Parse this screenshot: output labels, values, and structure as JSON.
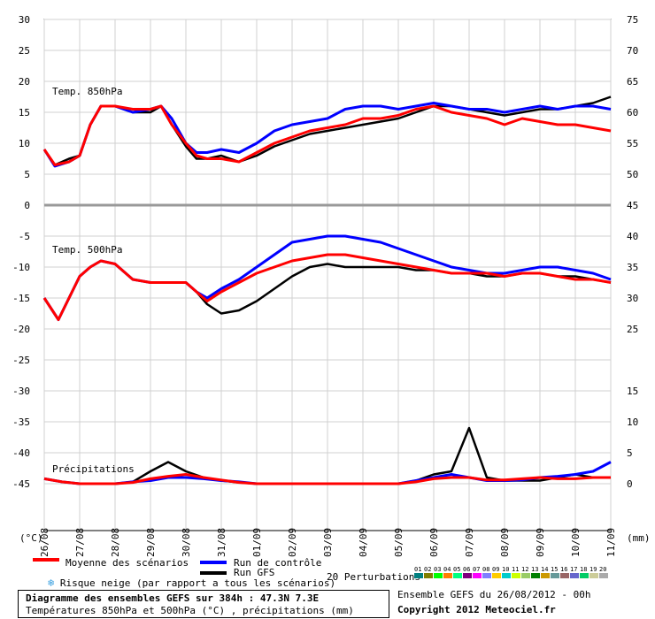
{
  "chart_data": [
    {
      "type": "line",
      "panel": "temp850",
      "title": "Temp. 850hPa",
      "ylim": [
        0,
        30
      ],
      "y_ticks": [
        0,
        5,
        10,
        15,
        20,
        25,
        30
      ],
      "x_dates": [
        "26/08",
        "27/08",
        "28/08",
        "29/08",
        "30/08",
        "31/08",
        "01/09",
        "02/09",
        "03/09",
        "04/09",
        "05/09",
        "06/09",
        "07/09",
        "08/09",
        "09/09",
        "10/09",
        "11/09"
      ],
      "series": [
        {
          "name": "Moyenne des scénarios",
          "x": [
            0,
            0.3,
            0.7,
            1,
            1.3,
            1.6,
            2,
            2.5,
            3,
            3.3,
            3.6,
            4,
            4.3,
            4.6,
            5,
            5.5,
            6,
            6.5,
            7,
            7.5,
            8,
            8.5,
            9,
            9.5,
            10,
            10.5,
            11,
            11.5,
            12,
            12.5,
            13,
            13.5,
            14,
            14.5,
            15,
            15.5,
            16
          ],
          "values": [
            9,
            6.5,
            7,
            8,
            13,
            16,
            16,
            15.5,
            15.5,
            16,
            13,
            10,
            8,
            7.5,
            7.5,
            7,
            8.5,
            10,
            11,
            12,
            12.5,
            13,
            14,
            14,
            14.5,
            15.5,
            16,
            15,
            14.5,
            14,
            13,
            14,
            13.5,
            13,
            13,
            12.5,
            12
          ]
        },
        {
          "name": "Run de contrôle",
          "x": [
            0,
            0.3,
            0.7,
            1,
            1.3,
            1.6,
            2,
            2.5,
            3,
            3.3,
            3.6,
            4,
            4.3,
            4.6,
            5,
            5.5,
            6,
            6.5,
            7,
            7.5,
            8,
            8.5,
            9,
            9.5,
            10,
            10.5,
            11,
            11.5,
            12,
            12.5,
            13,
            13.5,
            14,
            14.5,
            15,
            15.5,
            16
          ],
          "values": [
            9,
            6.3,
            7,
            8,
            13,
            16,
            16,
            15,
            15.5,
            16,
            14,
            10,
            8.5,
            8.5,
            9,
            8.5,
            10,
            12,
            13,
            13.5,
            14,
            15.5,
            16,
            16,
            15.5,
            16,
            16.5,
            16,
            15.5,
            15.5,
            15,
            15.5,
            16,
            15.5,
            16,
            16,
            15.5
          ]
        },
        {
          "name": "Run GFS",
          "x": [
            0,
            0.3,
            0.7,
            1,
            1.3,
            1.6,
            2,
            2.5,
            3,
            3.3,
            3.6,
            4,
            4.3,
            4.6,
            5,
            5.5,
            6,
            6.5,
            7,
            7.5,
            8,
            8.5,
            9,
            9.5,
            10,
            10.5,
            11,
            11.5,
            12,
            12.5,
            13,
            13.5,
            14,
            14.5,
            15,
            15.5,
            16
          ],
          "values": [
            9,
            6.5,
            7.5,
            8,
            13,
            16,
            16,
            15,
            15,
            16,
            13,
            9.5,
            7.5,
            7.5,
            8,
            7,
            8,
            9.5,
            10.5,
            11.5,
            12,
            12.5,
            13,
            13.5,
            14,
            15,
            16,
            16,
            15.5,
            15,
            14.5,
            15,
            15.5,
            15.5,
            16,
            16.5,
            17.5
          ]
        }
      ],
      "y_right_ticks": [
        45,
        50,
        55,
        60,
        65,
        70,
        75
      ]
    },
    {
      "type": "line",
      "panel": "temp500",
      "title": "Temp. 500hPa",
      "ylim": [
        -25,
        0
      ],
      "y_ticks": [
        -5,
        -10,
        -15,
        -20,
        -25
      ],
      "series": [
        {
          "name": "Moyenne des scénarios",
          "x": [
            0,
            0.4,
            0.7,
            1,
            1.3,
            1.6,
            2,
            2.5,
            3,
            3.5,
            4,
            4.3,
            4.6,
            5,
            5.5,
            6,
            6.5,
            7,
            7.5,
            8,
            8.5,
            9,
            9.5,
            10,
            10.5,
            11,
            11.5,
            12,
            12.5,
            13,
            13.5,
            14,
            14.5,
            15,
            15.5,
            16
          ],
          "values": [
            -15,
            -18.5,
            -15,
            -11.5,
            -10,
            -9,
            -9.5,
            -12,
            -12.5,
            -12.5,
            -12.5,
            -14,
            -15.5,
            -14,
            -12.5,
            -11,
            -10,
            -9,
            -8.5,
            -8,
            -8,
            -8.5,
            -9,
            -9.5,
            -10,
            -10.5,
            -11,
            -11,
            -11,
            -11.5,
            -11,
            -11,
            -11.5,
            -12,
            -12,
            -12.5
          ]
        },
        {
          "name": "Run de contrôle",
          "x": [
            0,
            0.4,
            0.7,
            1,
            1.3,
            1.6,
            2,
            2.5,
            3,
            3.5,
            4,
            4.3,
            4.6,
            5,
            5.5,
            6,
            6.5,
            7,
            7.5,
            8,
            8.5,
            9,
            9.5,
            10,
            10.5,
            11,
            11.5,
            12,
            12.5,
            13,
            13.5,
            14,
            14.5,
            15,
            15.5,
            16
          ],
          "values": [
            -15,
            -18.5,
            -15,
            -11.5,
            -10,
            -9,
            -9.5,
            -12,
            -12.5,
            -12.5,
            -12.5,
            -14,
            -15,
            -13.5,
            -12,
            -10,
            -8,
            -6,
            -5.5,
            -5,
            -5,
            -5.5,
            -6,
            -7,
            -8,
            -9,
            -10,
            -10.5,
            -11,
            -11,
            -10.5,
            -10,
            -10,
            -10.5,
            -11,
            -12
          ]
        },
        {
          "name": "Run GFS",
          "x": [
            0,
            0.4,
            0.7,
            1,
            1.3,
            1.6,
            2,
            2.5,
            3,
            3.5,
            4,
            4.3,
            4.6,
            5,
            5.5,
            6,
            6.5,
            7,
            7.5,
            8,
            8.5,
            9,
            9.5,
            10,
            10.5,
            11,
            11.5,
            12,
            12.5,
            13,
            13.5,
            14,
            14.5,
            15,
            15.5,
            16
          ],
          "values": [
            -15,
            -18.5,
            -15,
            -11.5,
            -10,
            -9,
            -9.5,
            -12,
            -12.5,
            -12.5,
            -12.5,
            -14,
            -16,
            -17.5,
            -17,
            -15.5,
            -13.5,
            -11.5,
            -10,
            -9.5,
            -10,
            -10,
            -10,
            -10,
            -10.5,
            -10.5,
            -11,
            -11,
            -11.5,
            -11.5,
            -11,
            -11,
            -11.5,
            -11.5,
            -12,
            -12.5
          ]
        }
      ],
      "y_right_ticks": [
        25,
        30,
        35,
        40
      ]
    },
    {
      "type": "line",
      "panel": "precip",
      "title": "Précipitations",
      "ylim": [
        -45,
        -30
      ],
      "y_ticks": [
        -30,
        -35,
        -40,
        -45
      ],
      "y_right_ticks": [
        0,
        5,
        10,
        15
      ],
      "series": [
        {
          "name": "Moyenne des scénarios",
          "x": [
            0,
            0.5,
            1,
            1.5,
            2,
            2.5,
            3,
            3.5,
            4,
            4.5,
            5,
            5.5,
            6,
            6.5,
            7,
            7.5,
            8,
            8.5,
            9,
            9.5,
            10,
            10.5,
            11,
            11.5,
            12,
            12.5,
            13,
            13.5,
            14,
            14.5,
            15,
            15.5,
            16
          ],
          "values": [
            0.8,
            0.3,
            0,
            0,
            0,
            0.2,
            0.8,
            1.2,
            1.5,
            1,
            0.6,
            0.2,
            0,
            0,
            0,
            0,
            0,
            0,
            0,
            0,
            0,
            0.3,
            0.8,
            1,
            1,
            0.6,
            0.6,
            0.8,
            1,
            0.8,
            0.8,
            1,
            1
          ]
        },
        {
          "name": "Run de contrôle",
          "x": [
            0,
            0.5,
            1,
            1.5,
            2,
            2.5,
            3,
            3.5,
            4,
            4.5,
            5,
            5.5,
            6,
            6.5,
            7,
            7.5,
            8,
            8.5,
            9,
            9.5,
            10,
            10.5,
            11,
            11.5,
            12,
            12.5,
            13,
            13.5,
            14,
            14.5,
            15,
            15.5,
            16
          ],
          "values": [
            0.8,
            0.3,
            0,
            0,
            0,
            0.3,
            0.5,
            1,
            1,
            0.8,
            0.5,
            0.3,
            0,
            0,
            0,
            0,
            0,
            0,
            0,
            0,
            0,
            0.5,
            1,
            1.5,
            1,
            0.5,
            0.5,
            0.6,
            1,
            1.2,
            1.5,
            2,
            3.5
          ]
        },
        {
          "name": "Run GFS",
          "x": [
            0,
            0.5,
            1,
            1.5,
            2,
            2.5,
            3,
            3.5,
            4,
            4.5,
            5,
            5.5,
            6,
            6.5,
            7,
            7.5,
            8,
            8.5,
            9,
            9.5,
            10,
            10.5,
            11,
            11.5,
            12,
            12.5,
            13,
            13.5,
            14,
            14.5,
            15,
            15.5,
            16
          ],
          "values": [
            0.8,
            0.3,
            0,
            0,
            0,
            0.3,
            2,
            3.5,
            2,
            1,
            0.5,
            0.2,
            0,
            0,
            0,
            0,
            0,
            0,
            0,
            0,
            0,
            0.5,
            1.5,
            2,
            9,
            1,
            0.5,
            0.5,
            0.5,
            1,
            1.5,
            1,
            1
          ]
        }
      ]
    }
  ],
  "axis": {
    "left_unit": "(°C)",
    "right_unit": "(mm)"
  },
  "legend": {
    "mean_label": "Moyenne des scénarios",
    "mean_color": "#ff0000",
    "control_label": "Run de contrôle",
    "control_color": "#0000ff",
    "gfs_label": "Run GFS",
    "gfs_color": "#000000",
    "snow_label": "Risque neige (par rapport a tous les scénarios)",
    "snow_icon": "snowflake-icon",
    "perturbations_label": "20 Perturbations",
    "perturbations": [
      {
        "num": "01",
        "color": "#007f7f"
      },
      {
        "num": "02",
        "color": "#7f7f00"
      },
      {
        "num": "03",
        "color": "#00ff00"
      },
      {
        "num": "04",
        "color": "#ff7f00"
      },
      {
        "num": "05",
        "color": "#00ff7f"
      },
      {
        "num": "06",
        "color": "#7f007f"
      },
      {
        "num": "07",
        "color": "#ff00ff"
      },
      {
        "num": "08",
        "color": "#7f7fff"
      },
      {
        "num": "09",
        "color": "#ffcc00"
      },
      {
        "num": "10",
        "color": "#00cccc"
      },
      {
        "num": "11",
        "color": "#ccff00"
      },
      {
        "num": "12",
        "color": "#99cc66"
      },
      {
        "num": "13",
        "color": "#007f00"
      },
      {
        "num": "14",
        "color": "#cc9900"
      },
      {
        "num": "15",
        "color": "#669999"
      },
      {
        "num": "16",
        "color": "#996666"
      },
      {
        "num": "17",
        "color": "#6666cc"
      },
      {
        "num": "18",
        "color": "#00cc66"
      },
      {
        "num": "19",
        "color": "#cccc99"
      },
      {
        "num": "20",
        "color": "#aaaaaa"
      }
    ]
  },
  "footer": {
    "title": "Diagramme des ensembles GEFS sur 384h : 47.3N 7.3E",
    "subtitle": "Températures 850hPa et 500hPa (°C) , précipitations (mm)",
    "run_info": "Ensemble GEFS du 26/08/2012 - 00h",
    "copyright": "Copyright 2012 Meteociel.fr"
  }
}
